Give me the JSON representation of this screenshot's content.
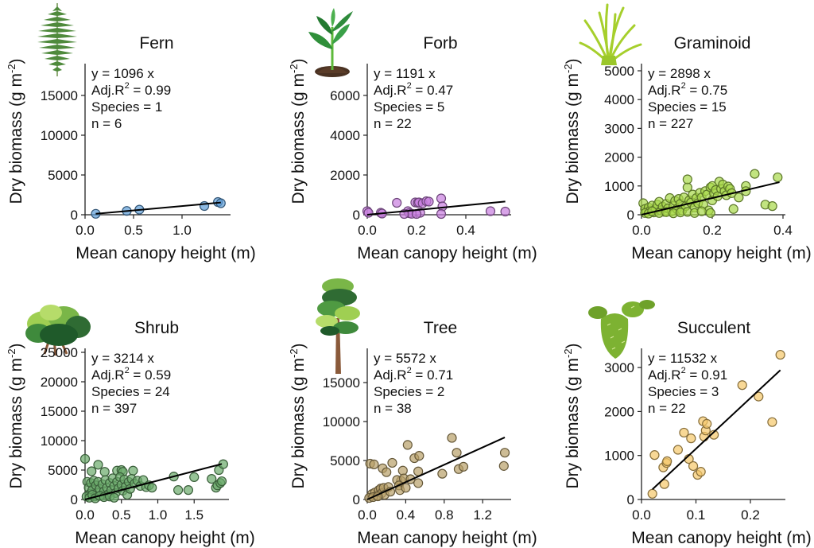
{
  "chart_data": [
    {
      "type": "scatter",
      "title": "Fern",
      "icon": "fern-icon",
      "xlabel": "Mean canopy height (m)",
      "ylabel": "Dry biomass (g m^-2)",
      "xlim": [
        0,
        1.5
      ],
      "ylim": [
        0,
        19000
      ],
      "xticks": [
        0.0,
        0.5,
        1.0
      ],
      "xtick_labels": [
        "0.0",
        "0.5",
        "1.0"
      ],
      "yticks": [
        0,
        5000,
        10000,
        15000
      ],
      "ytick_labels": [
        "0",
        "5000",
        "10000",
        "15000"
      ],
      "color": "#5b9bd5",
      "slope": 1096,
      "fit_x": [
        0.11,
        1.4
      ],
      "annotations": {
        "equation": "y = 1096 x",
        "adj_r2_label": "Adj.R",
        "adj_r2_value": " = 0.99",
        "species": "Species = 1",
        "n": "n = 6"
      },
      "points": [
        [
          0.11,
          120
        ],
        [
          0.43,
          480
        ],
        [
          0.56,
          640
        ],
        [
          1.23,
          1100
        ],
        [
          1.37,
          1600
        ],
        [
          1.4,
          1450
        ]
      ]
    },
    {
      "type": "scatter",
      "title": "Forb",
      "icon": "forb-seedling-icon",
      "xlabel": "Mean canopy height (m)",
      "ylabel": "Dry biomass (g m^-2)",
      "xlim": [
        0,
        0.58
      ],
      "ylim": [
        0,
        7400
      ],
      "xticks": [
        0.0,
        0.2,
        0.4
      ],
      "xtick_labels": [
        "0.0",
        "0.2",
        "0.4"
      ],
      "yticks": [
        0,
        2000,
        4000,
        6000
      ],
      "ytick_labels": [
        "0",
        "2000",
        "4000",
        "6000"
      ],
      "color": "#c77dde",
      "slope": 1191,
      "fit_x": [
        0.0,
        0.56
      ],
      "annotations": {
        "equation": "y = 1191 x",
        "adj_r2_label": "Adj.R",
        "adj_r2_value": " = 0.47",
        "species": "Species = 5",
        "n": "n = 22"
      },
      "points": [
        [
          0.0,
          180
        ],
        [
          0.005,
          100
        ],
        [
          0.055,
          100
        ],
        [
          0.06,
          60
        ],
        [
          0.12,
          600
        ],
        [
          0.165,
          180
        ],
        [
          0.17,
          80
        ],
        [
          0.18,
          50
        ],
        [
          0.195,
          620
        ],
        [
          0.205,
          600
        ],
        [
          0.21,
          620
        ],
        [
          0.215,
          100
        ],
        [
          0.225,
          580
        ],
        [
          0.24,
          680
        ],
        [
          0.25,
          660
        ],
        [
          0.3,
          820
        ],
        [
          0.305,
          420
        ],
        [
          0.3,
          40
        ],
        [
          0.15,
          40
        ],
        [
          0.2,
          40
        ],
        [
          0.5,
          180
        ],
        [
          0.56,
          160
        ]
      ]
    },
    {
      "type": "scatter",
      "title": "Graminoid",
      "icon": "grass-icon",
      "xlabel": "Mean canopy height (m)",
      "ylabel": "Dry biomass (g m^-2)",
      "xlim": [
        0,
        0.4
      ],
      "ylim": [
        0,
        5200
      ],
      "xticks": [
        0.0,
        0.2,
        0.4
      ],
      "xtick_labels": [
        "0.0",
        "0.2",
        "0.4"
      ],
      "yticks": [
        0,
        1000,
        2000,
        3000,
        4000,
        5000
      ],
      "ytick_labels": [
        "0",
        "1000",
        "2000",
        "3000",
        "4000",
        "5000"
      ],
      "color": "#a8d94a",
      "slope": 2898,
      "fit_x": [
        0.0,
        0.39
      ],
      "annotations": {
        "equation": "y = 2898 x",
        "adj_r2_label": "Adj.R",
        "adj_r2_value": " = 0.75",
        "species": "Species = 15",
        "n": "n = 227"
      },
      "points": [
        [
          0.005,
          400
        ],
        [
          0.01,
          200
        ],
        [
          0.015,
          100
        ],
        [
          0.02,
          250
        ],
        [
          0.025,
          150
        ],
        [
          0.03,
          320
        ],
        [
          0.035,
          80
        ],
        [
          0.04,
          200
        ],
        [
          0.045,
          350
        ],
        [
          0.05,
          450
        ],
        [
          0.055,
          150
        ],
        [
          0.06,
          280
        ],
        [
          0.065,
          100
        ],
        [
          0.07,
          380
        ],
        [
          0.075,
          220
        ],
        [
          0.08,
          580
        ],
        [
          0.085,
          120
        ],
        [
          0.09,
          300
        ],
        [
          0.095,
          480
        ],
        [
          0.1,
          200
        ],
        [
          0.105,
          550
        ],
        [
          0.11,
          380
        ],
        [
          0.115,
          150
        ],
        [
          0.12,
          600
        ],
        [
          0.125,
          300
        ],
        [
          0.13,
          950
        ],
        [
          0.13,
          1230
        ],
        [
          0.135,
          500
        ],
        [
          0.14,
          420
        ],
        [
          0.145,
          700
        ],
        [
          0.15,
          250
        ],
        [
          0.155,
          580
        ],
        [
          0.16,
          400
        ],
        [
          0.165,
          760
        ],
        [
          0.17,
          600
        ],
        [
          0.175,
          350
        ],
        [
          0.18,
          820
        ],
        [
          0.185,
          700
        ],
        [
          0.19,
          150
        ],
        [
          0.195,
          950
        ],
        [
          0.2,
          1000
        ],
        [
          0.2,
          500
        ],
        [
          0.205,
          740
        ],
        [
          0.21,
          860
        ],
        [
          0.215,
          640
        ],
        [
          0.22,
          1150
        ],
        [
          0.225,
          900
        ],
        [
          0.23,
          1050
        ],
        [
          0.235,
          820
        ],
        [
          0.24,
          680
        ],
        [
          0.245,
          980
        ],
        [
          0.25,
          900
        ],
        [
          0.255,
          750
        ],
        [
          0.26,
          200
        ],
        [
          0.275,
          600
        ],
        [
          0.295,
          1000
        ],
        [
          0.295,
          820
        ],
        [
          0.32,
          1420
        ],
        [
          0.35,
          350
        ],
        [
          0.37,
          300
        ],
        [
          0.385,
          1300
        ],
        [
          0.01,
          60
        ],
        [
          0.02,
          40
        ],
        [
          0.03,
          120
        ],
        [
          0.05,
          60
        ],
        [
          0.07,
          90
        ],
        [
          0.09,
          50
        ],
        [
          0.11,
          80
        ],
        [
          0.13,
          100
        ],
        [
          0.15,
          60
        ],
        [
          0.17,
          120
        ],
        [
          0.195,
          60
        ]
      ]
    },
    {
      "type": "scatter",
      "title": "Shrub",
      "icon": "shrub-icon",
      "xlabel": "Mean canopy height (m)",
      "ylabel": "Dry biomass (g m^-2)",
      "xlim": [
        0,
        1.98
      ],
      "ylim": [
        0,
        25500
      ],
      "xticks": [
        0.0,
        0.5,
        1.0,
        1.5
      ],
      "xtick_labels": [
        "0.0",
        "0.5",
        "1.0",
        "1.5"
      ],
      "yticks": [
        0,
        5000,
        10000,
        15000,
        20000,
        25000
      ],
      "ytick_labels": [
        "0",
        "5000",
        "10000",
        "15000",
        "20000",
        "25000"
      ],
      "color": "#6aaa6a",
      "slope": 3214,
      "fit_x": [
        0.0,
        1.88
      ],
      "annotations": {
        "equation": "y = 3214 x",
        "adj_r2_label": "Adj.R",
        "adj_r2_value": " = 0.59",
        "species": "Species = 24",
        "n": "n = 397"
      },
      "points": [
        [
          0.0,
          6900
        ],
        [
          0.09,
          4800
        ],
        [
          0.18,
          5900
        ],
        [
          0.27,
          4700
        ],
        [
          0.44,
          4900
        ],
        [
          0.5,
          5000
        ],
        [
          0.52,
          4700
        ],
        [
          0.66,
          4900
        ],
        [
          0.03,
          3000
        ],
        [
          0.05,
          2000
        ],
        [
          0.07,
          1000
        ],
        [
          0.08,
          2800
        ],
        [
          0.1,
          1600
        ],
        [
          0.12,
          3200
        ],
        [
          0.13,
          500
        ],
        [
          0.15,
          2400
        ],
        [
          0.17,
          1200
        ],
        [
          0.18,
          3000
        ],
        [
          0.2,
          1800
        ],
        [
          0.22,
          700
        ],
        [
          0.24,
          2600
        ],
        [
          0.26,
          1400
        ],
        [
          0.28,
          3300
        ],
        [
          0.3,
          2000
        ],
        [
          0.32,
          900
        ],
        [
          0.34,
          2800
        ],
        [
          0.36,
          1600
        ],
        [
          0.38,
          3600
        ],
        [
          0.4,
          2300
        ],
        [
          0.42,
          1100
        ],
        [
          0.44,
          3000
        ],
        [
          0.46,
          1900
        ],
        [
          0.48,
          3800
        ],
        [
          0.5,
          2500
        ],
        [
          0.52,
          1500
        ],
        [
          0.54,
          3400
        ],
        [
          0.56,
          2200
        ],
        [
          0.58,
          800
        ],
        [
          0.6,
          3000
        ],
        [
          0.62,
          1800
        ],
        [
          0.64,
          3500
        ],
        [
          0.68,
          2700
        ],
        [
          0.72,
          3200
        ],
        [
          0.76,
          2300
        ],
        [
          0.8,
          3300
        ],
        [
          0.84,
          2100
        ],
        [
          0.88,
          2400
        ],
        [
          0.92,
          2000
        ],
        [
          1.22,
          3900
        ],
        [
          1.28,
          1600
        ],
        [
          1.42,
          1600
        ],
        [
          1.5,
          3800
        ],
        [
          1.74,
          3500
        ],
        [
          1.8,
          2000
        ],
        [
          1.82,
          2400
        ],
        [
          1.84,
          5000
        ],
        [
          1.86,
          2800
        ],
        [
          1.88,
          3100
        ],
        [
          1.9,
          6000
        ],
        [
          0.02,
          500
        ],
        [
          0.06,
          300
        ],
        [
          0.1,
          800
        ],
        [
          0.14,
          200
        ],
        [
          0.2,
          600
        ],
        [
          0.26,
          400
        ],
        [
          0.34,
          500
        ],
        [
          0.4,
          300
        ]
      ]
    },
    {
      "type": "scatter",
      "title": "Tree",
      "icon": "tree-icon",
      "xlabel": "Mean canopy height (m)",
      "ylabel": "Dry biomass (g m^-2)",
      "xlim": [
        0,
        1.47
      ],
      "ylim": [
        0,
        19000
      ],
      "xticks": [
        0.0,
        0.4,
        0.8,
        1.2
      ],
      "xtick_labels": [
        "0.0",
        "0.4",
        "0.8",
        "1.2"
      ],
      "yticks": [
        0,
        5000,
        10000,
        15000
      ],
      "ytick_labels": [
        "0",
        "5000",
        "10000",
        "15000"
      ],
      "color": "#b8a068",
      "slope": 5572,
      "fit_x": [
        0.0,
        1.43
      ],
      "annotations": {
        "equation": "y = 5572 x",
        "adj_r2_label": "Adj.R",
        "adj_r2_value": " = 0.71",
        "species": "Species = 2",
        "n": "n = 38"
      },
      "points": [
        [
          0.03,
          4600
        ],
        [
          0.07,
          4500
        ],
        [
          0.16,
          4000
        ],
        [
          0.2,
          3500
        ],
        [
          0.26,
          4700
        ],
        [
          0.35,
          2400
        ],
        [
          0.37,
          3700
        ],
        [
          0.42,
          7000
        ],
        [
          0.49,
          5300
        ],
        [
          0.53,
          3600
        ],
        [
          0.54,
          5600
        ],
        [
          0.53,
          2100
        ],
        [
          0.78,
          3300
        ],
        [
          0.88,
          7900
        ],
        [
          0.93,
          6000
        ],
        [
          0.95,
          3900
        ],
        [
          1.0,
          4200
        ],
        [
          1.43,
          6000
        ],
        [
          1.42,
          4300
        ],
        [
          0.05,
          700
        ],
        [
          0.08,
          900
        ],
        [
          0.1,
          500
        ],
        [
          0.12,
          1200
        ],
        [
          0.14,
          1400
        ],
        [
          0.15,
          800
        ],
        [
          0.17,
          1500
        ],
        [
          0.18,
          600
        ],
        [
          0.22,
          1600
        ],
        [
          0.24,
          1000
        ],
        [
          0.31,
          2500
        ],
        [
          0.33,
          1800
        ],
        [
          0.34,
          1200
        ],
        [
          0.38,
          2700
        ],
        [
          0.4,
          1500
        ],
        [
          0.45,
          2600
        ],
        [
          0.02,
          200
        ],
        [
          0.06,
          300
        ],
        [
          0.11,
          400
        ]
      ]
    },
    {
      "type": "scatter",
      "title": "Succulent",
      "icon": "cactus-icon",
      "xlabel": "Mean canopy height (m)",
      "ylabel": "Dry biomass (g m^-2)",
      "xlim": [
        0,
        0.265
      ],
      "ylim": [
        0,
        3450
      ],
      "xticks": [
        0.0,
        0.1,
        0.2
      ],
      "xtick_labels": [
        "0.0",
        "0.1",
        "0.2"
      ],
      "yticks": [
        0,
        1000,
        2000,
        3000
      ],
      "ytick_labels": [
        "0",
        "1000",
        "2000",
        "3000"
      ],
      "color": "#f5c86a",
      "slope": 11532,
      "fit_x": [
        0.02,
        0.255
      ],
      "annotations": {
        "equation": "y = 11532 x",
        "adj_r2_label": "Adj.R",
        "adj_r2_value": " = 0.91",
        "species": "Species = 3",
        "n": "n = 22"
      },
      "points": [
        [
          0.02,
          130
        ],
        [
          0.024,
          1010
        ],
        [
          0.04,
          730
        ],
        [
          0.042,
          350
        ],
        [
          0.046,
          830
        ],
        [
          0.047,
          870
        ],
        [
          0.067,
          1130
        ],
        [
          0.078,
          1520
        ],
        [
          0.087,
          920
        ],
        [
          0.091,
          1390
        ],
        [
          0.095,
          760
        ],
        [
          0.103,
          560
        ],
        [
          0.109,
          630
        ],
        [
          0.113,
          1780
        ],
        [
          0.115,
          1430
        ],
        [
          0.118,
          1570
        ],
        [
          0.12,
          1720
        ],
        [
          0.133,
          1470
        ],
        [
          0.185,
          2600
        ],
        [
          0.215,
          2340
        ],
        [
          0.24,
          1760
        ],
        [
          0.255,
          3290
        ]
      ]
    }
  ]
}
